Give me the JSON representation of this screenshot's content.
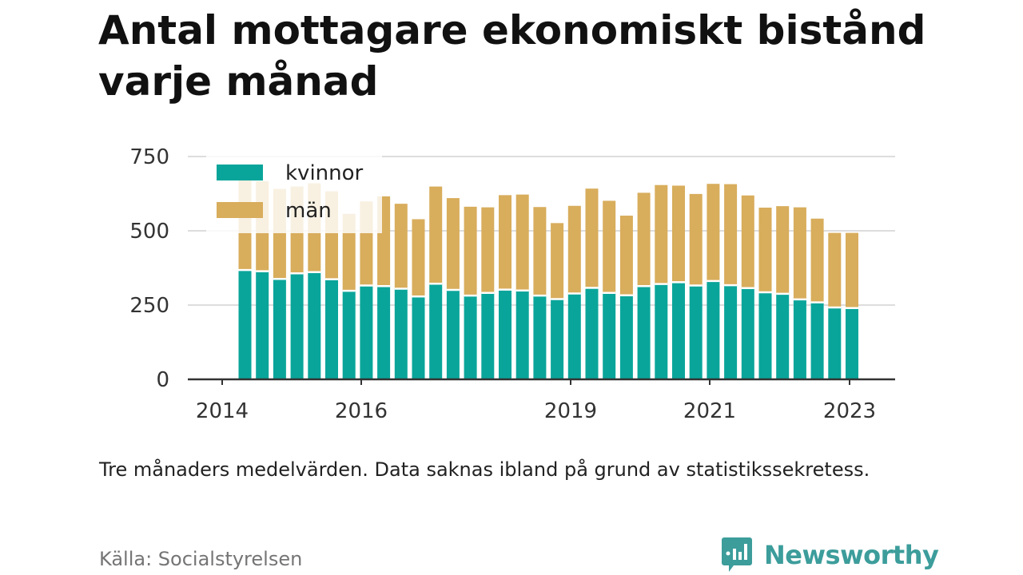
{
  "title": "Antal mottagare ekonomiskt bistånd varje månad",
  "note": "Tre månaders medelvärden. Data saknas ibland på grund av statistikssekretess.",
  "source": "Källa: Socialstyrelsen",
  "brand": {
    "name": "Newsworthy",
    "icon": "newsworthy-logo-icon"
  },
  "colors": {
    "kvinnor": "#0aa59a",
    "man": "#d8ad5c",
    "grid": "#dddddd",
    "axis": "#333333",
    "brand": "#3c9d9b"
  },
  "chart_data": {
    "type": "bar",
    "stacked": true,
    "x_tick_labels": [
      "2014",
      "2016",
      "2019",
      "2021",
      "2023"
    ],
    "y_tick_labels": [
      "0",
      "250",
      "500",
      "750"
    ],
    "ylim": [
      0,
      750
    ],
    "grid": true,
    "legend_position": "top-left",
    "categories": [
      "2014-Q2",
      "2014-Q3",
      "2014-Q4",
      "2015-Q1",
      "2015-Q2",
      "2015-Q3",
      "2015-Q4",
      "2016-Q1",
      "2016-Q2",
      "2016-Q3",
      "2016-Q4",
      "2017-Q1",
      "2017-Q2",
      "2017-Q3",
      "2017-Q4",
      "2018-Q1",
      "2018-Q2",
      "2018-Q3",
      "2018-Q4",
      "2019-Q1",
      "2019-Q2",
      "2019-Q3",
      "2019-Q4",
      "2020-Q1",
      "2020-Q2",
      "2020-Q3",
      "2020-Q4",
      "2021-Q1",
      "2021-Q2",
      "2021-Q3",
      "2021-Q4",
      "2022-Q1",
      "2022-Q2",
      "2022-Q3",
      "2022-Q4",
      "2023-Q1"
    ],
    "series": [
      {
        "name": "kvinnor",
        "values": [
          368,
          364,
          338,
          357,
          361,
          337,
          298,
          316,
          314,
          305,
          279,
          322,
          301,
          282,
          291,
          302,
          299,
          282,
          270,
          289,
          308,
          291,
          283,
          314,
          321,
          327,
          316,
          331,
          317,
          307,
          293,
          288,
          269,
          259,
          242,
          240
        ]
      },
      {
        "name": "män",
        "values": [
          302,
          303,
          303,
          292,
          299,
          296,
          259,
          283,
          302,
          286,
          260,
          327,
          309,
          299,
          288,
          318,
          323,
          298,
          256,
          295,
          334,
          310,
          268,
          314,
          333,
          325,
          308,
          327,
          340,
          312,
          285,
          295,
          310,
          282,
          251,
          253
        ]
      }
    ]
  }
}
